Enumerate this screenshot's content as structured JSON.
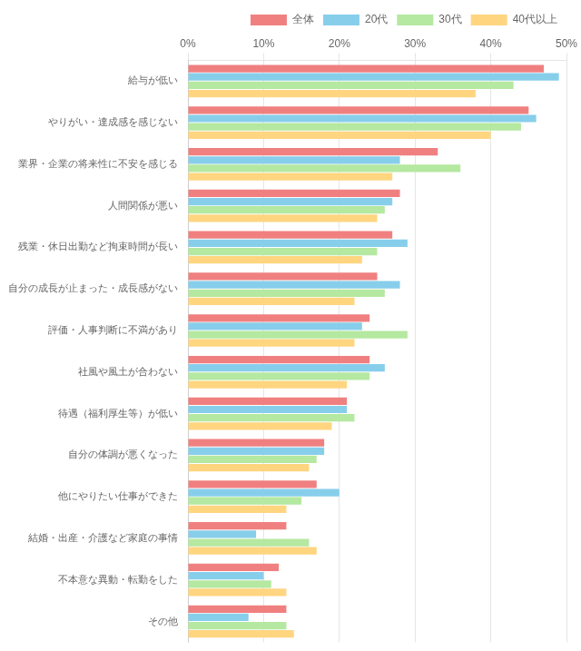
{
  "chart_data": {
    "type": "bar",
    "orientation": "horizontal",
    "categories": [
      "給与が低い",
      "やりがい・達成感を感じない",
      "業界・企業の将来性に不安を感じる",
      "人間関係が悪い",
      "残業・休日出勤など拘束時間が長い",
      "自分の成長が止まった・成長感がない",
      "評価・人事判断に不満があり",
      "社風や風土が合わない",
      "待遇（福利厚生等）が低い",
      "自分の体調が悪くなった",
      "他にやりたい仕事ができた",
      "結婚・出産・介護など家庭の事情",
      "不本意な異動・転勤をした",
      "その他"
    ],
    "series": [
      {
        "name": "全体",
        "color": "#F08080",
        "values": [
          47,
          45,
          33,
          28,
          27,
          25,
          24,
          24,
          21,
          18,
          17,
          13,
          12,
          13
        ]
      },
      {
        "name": "20代",
        "color": "#87CEEB",
        "values": [
          49,
          46,
          28,
          27,
          29,
          28,
          23,
          26,
          21,
          18,
          20,
          9,
          10,
          8
        ]
      },
      {
        "name": "30代",
        "color": "#B5E8A0",
        "values": [
          43,
          44,
          36,
          26,
          25,
          26,
          29,
          24,
          22,
          17,
          15,
          16,
          11,
          13
        ]
      },
      {
        "name": "40代以上",
        "color": "#FFD580",
        "values": [
          38,
          40,
          27,
          25,
          23,
          22,
          22,
          21,
          19,
          16,
          13,
          17,
          13,
          14
        ]
      }
    ],
    "xlim": [
      0,
      50
    ],
    "xticks": [
      {
        "value": 0,
        "label": "0%"
      },
      {
        "value": 10,
        "label": "10%"
      },
      {
        "value": 20,
        "label": "20%"
      },
      {
        "value": 30,
        "label": "30%"
      },
      {
        "value": 40,
        "label": "40%"
      },
      {
        "value": 50,
        "label": "50%"
      }
    ],
    "grid": true,
    "legend": "upper right"
  }
}
